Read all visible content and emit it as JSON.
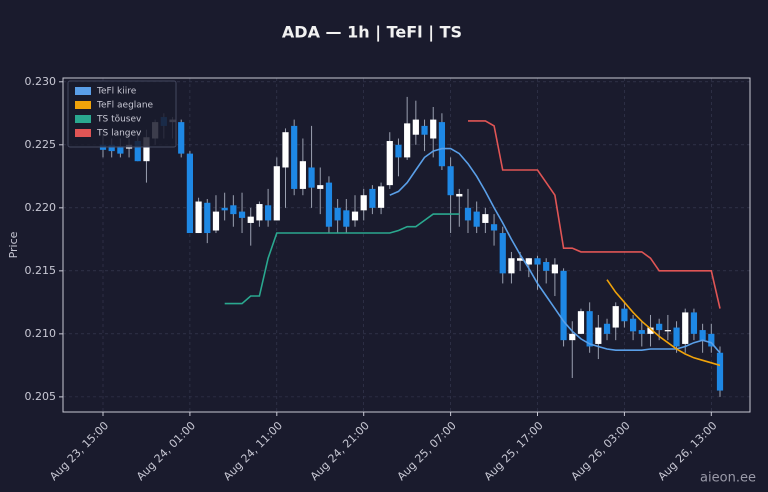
{
  "chart_data": {
    "type": "candlestick",
    "title": "ADA — 1h  |  TeFl  |  TS",
    "ylabel": "Price",
    "watermark": "aieon.ee",
    "up_color": "#ffffff",
    "down_color": "#1e88e5",
    "grid": true,
    "legend": "upper left",
    "categories": [
      "Aug 23, 15:00",
      "Aug 23, 16:00",
      "Aug 23, 17:00",
      "Aug 23, 18:00",
      "Aug 23, 19:00",
      "Aug 23, 20:00",
      "Aug 23, 21:00",
      "Aug 23, 22:00",
      "Aug 23, 23:00",
      "Aug 24, 00:00",
      "Aug 24, 01:00",
      "Aug 24, 02:00",
      "Aug 24, 03:00",
      "Aug 24, 04:00",
      "Aug 24, 05:00",
      "Aug 24, 06:00",
      "Aug 24, 07:00",
      "Aug 24, 08:00",
      "Aug 24, 09:00",
      "Aug 24, 10:00",
      "Aug 24, 11:00",
      "Aug 24, 12:00",
      "Aug 24, 13:00",
      "Aug 24, 14:00",
      "Aug 24, 15:00",
      "Aug 24, 16:00",
      "Aug 24, 17:00",
      "Aug 24, 18:00",
      "Aug 24, 19:00",
      "Aug 24, 20:00",
      "Aug 24, 21:00",
      "Aug 24, 22:00",
      "Aug 24, 23:00",
      "Aug 25, 00:00",
      "Aug 25, 01:00",
      "Aug 25, 02:00",
      "Aug 25, 03:00",
      "Aug 25, 04:00",
      "Aug 25, 05:00",
      "Aug 25, 06:00",
      "Aug 25, 07:00",
      "Aug 25, 08:00",
      "Aug 25, 09:00",
      "Aug 25, 10:00",
      "Aug 25, 11:00",
      "Aug 25, 12:00",
      "Aug 25, 13:00",
      "Aug 25, 14:00",
      "Aug 25, 15:00",
      "Aug 25, 16:00",
      "Aug 25, 17:00",
      "Aug 25, 18:00",
      "Aug 25, 19:00",
      "Aug 25, 20:00",
      "Aug 25, 21:00",
      "Aug 25, 22:00",
      "Aug 25, 23:00",
      "Aug 26, 00:00",
      "Aug 26, 01:00",
      "Aug 26, 02:00",
      "Aug 26, 03:00",
      "Aug 26, 04:00",
      "Aug 26, 05:00",
      "Aug 26, 06:00",
      "Aug 26, 07:00",
      "Aug 26, 08:00",
      "Aug 26, 09:00",
      "Aug 26, 10:00",
      "Aug 26, 11:00",
      "Aug 26, 12:00",
      "Aug 26, 13:00",
      "Aug 26, 14:00"
    ],
    "open": [
      0.225,
      0.225,
      0.2249,
      0.2247,
      0.2253,
      0.2237,
      0.2255,
      0.2272,
      0.2268,
      0.2268,
      0.2243,
      0.218,
      0.2204,
      0.2182,
      0.22,
      0.2202,
      0.2197,
      0.2188,
      0.219,
      0.2202,
      0.219,
      0.2232,
      0.2265,
      0.2215,
      0.2232,
      0.2215,
      0.222,
      0.22,
      0.2198,
      0.219,
      0.2198,
      0.2215,
      0.22,
      0.2218,
      0.225,
      0.224,
      0.2258,
      0.2265,
      0.2255,
      0.2268,
      0.2233,
      0.2209,
      0.22,
      0.2197,
      0.2188,
      0.2187,
      0.218,
      0.2148,
      0.2158,
      0.2155,
      0.216,
      0.2157,
      0.2148,
      0.215,
      0.2095,
      0.21,
      0.2118,
      0.2092,
      0.2108,
      0.2105,
      0.212,
      0.2112,
      0.2103,
      0.21,
      0.2108,
      0.2102,
      0.2105,
      0.2092,
      0.2117,
      0.2103,
      0.21,
      0.2085
    ],
    "high": [
      0.226,
      0.2255,
      0.2255,
      0.2255,
      0.226,
      0.2262,
      0.227,
      0.2275,
      0.2272,
      0.227,
      0.2245,
      0.2208,
      0.2207,
      0.221,
      0.2212,
      0.221,
      0.2212,
      0.22,
      0.2205,
      0.2215,
      0.224,
      0.2263,
      0.227,
      0.2255,
      0.2265,
      0.2232,
      0.2225,
      0.2207,
      0.2207,
      0.221,
      0.2215,
      0.2218,
      0.222,
      0.226,
      0.2255,
      0.2288,
      0.2285,
      0.227,
      0.228,
      0.2275,
      0.224,
      0.2215,
      0.2215,
      0.2205,
      0.22,
      0.2195,
      0.2185,
      0.2165,
      0.2165,
      0.216,
      0.2162,
      0.216,
      0.216,
      0.2152,
      0.211,
      0.212,
      0.2125,
      0.2115,
      0.2112,
      0.2125,
      0.2125,
      0.2115,
      0.211,
      0.2115,
      0.2112,
      0.2115,
      0.211,
      0.212,
      0.212,
      0.2108,
      0.2108,
      0.209
    ],
    "low": [
      0.224,
      0.224,
      0.224,
      0.224,
      0.2237,
      0.222,
      0.225,
      0.2255,
      0.2255,
      0.224,
      0.218,
      0.218,
      0.2172,
      0.218,
      0.219,
      0.2185,
      0.218,
      0.217,
      0.2185,
      0.2185,
      0.219,
      0.22,
      0.221,
      0.221,
      0.22,
      0.2195,
      0.218,
      0.218,
      0.218,
      0.2185,
      0.219,
      0.2195,
      0.2195,
      0.2215,
      0.2225,
      0.2238,
      0.225,
      0.2245,
      0.224,
      0.223,
      0.218,
      0.2185,
      0.218,
      0.218,
      0.218,
      0.217,
      0.214,
      0.214,
      0.215,
      0.2145,
      0.2135,
      0.214,
      0.213,
      0.209,
      0.2065,
      0.21,
      0.2085,
      0.208,
      0.2095,
      0.2095,
      0.2105,
      0.2095,
      0.209,
      0.209,
      0.2095,
      0.2095,
      0.2085,
      0.2085,
      0.2095,
      0.2085,
      0.2085,
      0.205
    ],
    "close": [
      0.2246,
      0.2245,
      0.2243,
      0.225,
      0.2237,
      0.2256,
      0.2268,
      0.2265,
      0.227,
      0.2243,
      0.218,
      0.2205,
      0.218,
      0.2197,
      0.2198,
      0.2195,
      0.2192,
      0.2193,
      0.2203,
      0.219,
      0.2233,
      0.226,
      0.2215,
      0.2237,
      0.2216,
      0.2218,
      0.2185,
      0.219,
      0.2185,
      0.2197,
      0.221,
      0.22,
      0.2217,
      0.2253,
      0.224,
      0.2267,
      0.227,
      0.2258,
      0.227,
      0.2233,
      0.221,
      0.2211,
      0.219,
      0.2185,
      0.2195,
      0.2182,
      0.2148,
      0.216,
      0.216,
      0.216,
      0.2155,
      0.215,
      0.2155,
      0.2095,
      0.21,
      0.2118,
      0.209,
      0.2105,
      0.21,
      0.2122,
      0.211,
      0.2102,
      0.21,
      0.2105,
      0.2103,
      0.2103,
      0.209,
      0.2117,
      0.21,
      0.2095,
      0.209,
      0.2055
    ],
    "series": [
      {
        "name": "TeFl kiire",
        "color": "#5a9fe8",
        "values": [
          null,
          null,
          null,
          null,
          null,
          null,
          null,
          null,
          null,
          null,
          null,
          null,
          null,
          null,
          null,
          null,
          null,
          null,
          null,
          null,
          null,
          null,
          null,
          null,
          null,
          null,
          null,
          null,
          null,
          null,
          null,
          null,
          null,
          0.221,
          0.2213,
          0.222,
          0.223,
          0.224,
          0.2245,
          0.2247,
          0.2247,
          0.2243,
          0.2235,
          0.2225,
          0.2213,
          0.22,
          0.2188,
          0.2175,
          0.2163,
          0.2152,
          0.214,
          0.213,
          0.212,
          0.211,
          0.2102,
          0.2096,
          0.2092,
          0.209,
          0.2088,
          0.2087,
          0.2087,
          0.2087,
          0.2087,
          0.2088,
          0.2088,
          0.2088,
          0.2088,
          0.209,
          0.2093,
          0.2095,
          0.2093,
          0.2085
        ]
      },
      {
        "name": "TeFl aeglane",
        "color": "#f0a30a",
        "values": [
          null,
          null,
          null,
          null,
          null,
          null,
          null,
          null,
          null,
          null,
          null,
          null,
          null,
          null,
          null,
          null,
          null,
          null,
          null,
          null,
          null,
          null,
          null,
          null,
          null,
          null,
          null,
          null,
          null,
          null,
          null,
          null,
          null,
          null,
          null,
          null,
          null,
          null,
          null,
          null,
          null,
          null,
          null,
          null,
          null,
          null,
          null,
          null,
          null,
          null,
          null,
          null,
          null,
          null,
          null,
          null,
          null,
          null,
          0.2143,
          0.2133,
          0.2125,
          0.2117,
          0.211,
          0.2104,
          0.2098,
          0.2093,
          0.2088,
          0.2084,
          0.2081,
          0.2079,
          0.2077,
          0.2075
        ]
      },
      {
        "name": "TS tõusev",
        "color": "#2aa88f",
        "values": [
          null,
          null,
          null,
          null,
          null,
          null,
          null,
          null,
          null,
          null,
          null,
          null,
          null,
          null,
          0.2124,
          0.2124,
          0.2124,
          0.213,
          0.213,
          0.216,
          0.218,
          0.218,
          0.218,
          0.218,
          0.218,
          0.218,
          0.218,
          0.218,
          0.218,
          0.218,
          0.218,
          0.218,
          0.218,
          0.218,
          0.2182,
          0.2185,
          0.2185,
          0.219,
          0.2195,
          0.2195,
          0.2195,
          0.2195,
          null,
          null,
          null,
          null,
          null,
          null,
          null,
          null,
          null,
          null,
          null,
          null,
          null,
          null,
          null,
          null,
          null,
          null,
          null,
          null,
          null,
          null,
          null,
          null,
          null,
          null,
          null,
          null,
          null,
          null
        ]
      },
      {
        "name": "TS langev",
        "color": "#e05555",
        "values": [
          null,
          null,
          null,
          null,
          null,
          null,
          null,
          null,
          null,
          null,
          null,
          null,
          null,
          null,
          null,
          null,
          null,
          null,
          null,
          null,
          null,
          null,
          null,
          null,
          null,
          null,
          null,
          null,
          null,
          null,
          null,
          null,
          null,
          null,
          null,
          null,
          null,
          null,
          null,
          null,
          null,
          null,
          0.2269,
          0.2269,
          0.2269,
          0.2265,
          0.223,
          0.223,
          0.223,
          0.223,
          0.223,
          0.222,
          0.221,
          0.2168,
          0.2168,
          0.2165,
          0.2165,
          0.2165,
          0.2165,
          0.2165,
          0.2165,
          0.2165,
          0.2165,
          0.216,
          0.215,
          0.215,
          0.215,
          0.215,
          0.215,
          0.215,
          0.215,
          0.212
        ]
      }
    ],
    "ylim": [
      0.2038,
      0.2303
    ],
    "yticks": [
      0.205,
      {
        "value": 0.21,
        "label": "0.210"
      },
      0.215,
      {
        "value": 0.22,
        "label": "0.220"
      },
      0.225,
      {
        "value": 0.23,
        "label": "0.230"
      }
    ],
    "xticks": [
      "Aug 23, 15:00",
      "Aug 24, 01:00",
      "Aug 24, 11:00",
      "Aug 24, 21:00",
      "Aug 25, 07:00",
      "Aug 25, 17:00",
      "Aug 26, 03:00",
      "Aug 26, 13:00"
    ]
  }
}
